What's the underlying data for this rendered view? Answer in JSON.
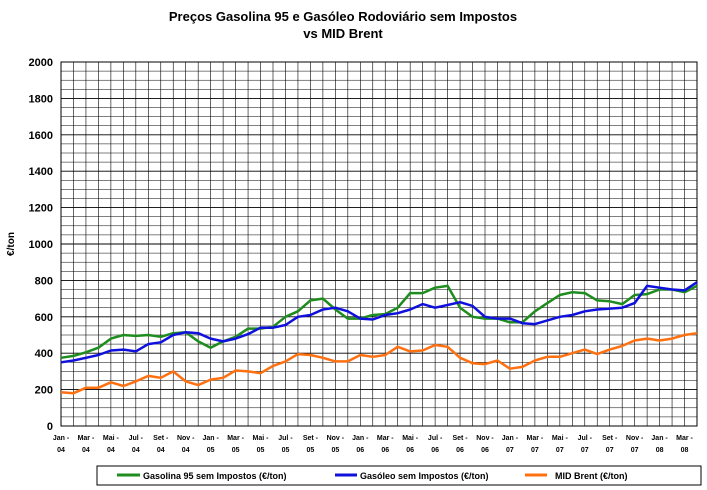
{
  "chart_data": {
    "type": "line",
    "title_line1": "Preços Gasolina 95 e Gasóleo Rodoviário sem Impostos",
    "title_line2": "vs MID Brent",
    "ylabel": "€/ton",
    "xlabel": "",
    "ylim": [
      0,
      2000
    ],
    "ytick_step": 200,
    "grid": true,
    "legend_position": "bottom",
    "x_tick_labels": [
      [
        "Jan -",
        "04"
      ],
      [
        "Mar -",
        "04"
      ],
      [
        "Mai -",
        "04"
      ],
      [
        "Jul -",
        "04"
      ],
      [
        "Set -",
        "04"
      ],
      [
        "Nov -",
        "04"
      ],
      [
        "Jan -",
        "05"
      ],
      [
        "Mar -",
        "05"
      ],
      [
        "Mai -",
        "05"
      ],
      [
        "Jul -",
        "05"
      ],
      [
        "Set -",
        "05"
      ],
      [
        "Nov -",
        "05"
      ],
      [
        "Jan -",
        "06"
      ],
      [
        "Mar -",
        "06"
      ],
      [
        "Mai -",
        "06"
      ],
      [
        "Jul -",
        "06"
      ],
      [
        "Set -",
        "06"
      ],
      [
        "Nov -",
        "06"
      ],
      [
        "Jan -",
        "07"
      ],
      [
        "Mar -",
        "07"
      ],
      [
        "Mai -",
        "07"
      ],
      [
        "Jul -",
        "07"
      ],
      [
        "Set -",
        "07"
      ],
      [
        "Nov -",
        "07"
      ],
      [
        "Jan -",
        "08"
      ],
      [
        "Mar -",
        "08"
      ]
    ],
    "series": [
      {
        "name": "Gasolina 95 sem Impostos (€/ton)",
        "color": "#1e8c1e",
        "values": [
          375,
          385,
          405,
          430,
          480,
          500,
          495,
          500,
          490,
          510,
          515,
          465,
          430,
          465,
          490,
          535,
          535,
          545,
          600,
          630,
          690,
          700,
          640,
          590,
          590,
          610,
          615,
          650,
          730,
          730,
          760,
          770,
          650,
          600,
          590,
          590,
          570,
          570,
          630,
          675,
          720,
          735,
          730,
          690,
          685,
          670,
          720,
          725,
          750,
          750,
          735,
          770
        ]
      },
      {
        "name": "Gasóleo sem Impostos (€/ton)",
        "color": "#1010dd",
        "values": [
          350,
          360,
          375,
          390,
          415,
          420,
          410,
          450,
          460,
          500,
          515,
          510,
          480,
          465,
          480,
          505,
          540,
          540,
          555,
          600,
          610,
          640,
          650,
          630,
          590,
          585,
          610,
          620,
          640,
          670,
          650,
          665,
          680,
          660,
          600,
          590,
          590,
          565,
          560,
          580,
          600,
          610,
          630,
          640,
          645,
          650,
          675,
          770,
          760,
          750,
          745,
          790
        ]
      },
      {
        "name": "MID Brent (€/ton)",
        "color": "#ff7010",
        "values": [
          185,
          180,
          210,
          210,
          240,
          220,
          245,
          275,
          265,
          300,
          245,
          225,
          255,
          265,
          305,
          300,
          290,
          330,
          355,
          395,
          390,
          375,
          355,
          355,
          390,
          380,
          390,
          435,
          410,
          415,
          445,
          435,
          375,
          345,
          340,
          360,
          315,
          325,
          360,
          380,
          380,
          400,
          420,
          395,
          420,
          440,
          470,
          480,
          470,
          480,
          500,
          510
        ]
      }
    ]
  }
}
